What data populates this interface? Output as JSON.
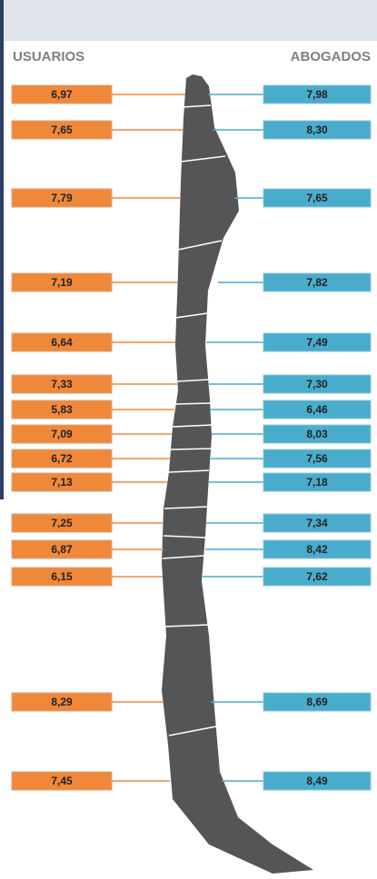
{
  "header": {
    "left": "USUARIOS",
    "right": "ABOGADOS"
  },
  "rows": [
    {
      "usuarios": "6,97",
      "abogados": "7,98"
    },
    {
      "usuarios": "7,65",
      "abogados": "8,30"
    },
    {
      "usuarios": "7,79",
      "abogados": "7,65"
    },
    {
      "usuarios": "7,19",
      "abogados": "7,82"
    },
    {
      "usuarios": "6,64",
      "abogados": "7,49"
    },
    {
      "usuarios": "7,33",
      "abogados": "7,30"
    },
    {
      "usuarios": "5,83",
      "abogados": "6,46"
    },
    {
      "usuarios": "7,09",
      "abogados": "8,03"
    },
    {
      "usuarios": "6,72",
      "abogados": "7,56"
    },
    {
      "usuarios": "7,13",
      "abogados": "7,18"
    },
    {
      "usuarios": "7,25",
      "abogados": "7,34"
    },
    {
      "usuarios": "6,87",
      "abogados": "8,42"
    },
    {
      "usuarios": "6,15",
      "abogados": "7,62"
    },
    {
      "usuarios": "8,29",
      "abogados": "8,69"
    },
    {
      "usuarios": "7,45",
      "abogados": "8,49"
    }
  ]
}
